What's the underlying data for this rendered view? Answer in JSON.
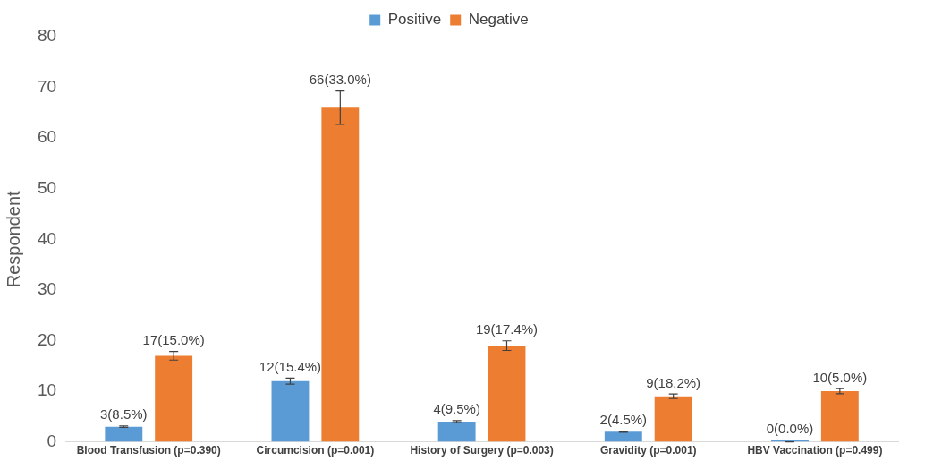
{
  "chart_data": {
    "type": "bar",
    "ylabel": "Respondent",
    "categories": [
      "Blood Transfusion (p=0.390)",
      "Circumcision (p=0.001)",
      "History of Surgery (p=0.003)",
      "Gravidity (p=0.001)",
      "HBV Vaccination (p=0.499)"
    ],
    "series": [
      {
        "name": "Positive",
        "color": "#5b9bd5",
        "values": [
          3,
          12,
          4,
          2,
          0
        ],
        "errors": [
          0.15,
          0.6,
          0.2,
          0.1,
          0
        ],
        "value_labels": [
          "3(8.5%)",
          "12(15.4%)",
          "4(9.5%)",
          "2(4.5%)",
          "0(0.0%)"
        ]
      },
      {
        "name": "Negative",
        "color": "#ed7d31",
        "values": [
          17,
          66,
          19,
          9,
          10
        ],
        "errors": [
          0.85,
          3.3,
          0.95,
          0.45,
          0.5
        ],
        "value_labels": [
          "17(15.0%)",
          "66(33.0%)",
          "19(17.4%)",
          "9(18.2%)",
          "10(5.0%)"
        ]
      }
    ],
    "ylim": [
      0,
      80
    ],
    "yticks": [
      0,
      10,
      20,
      30,
      40,
      50,
      60,
      70,
      80
    ],
    "grid": false,
    "legend": "top"
  }
}
